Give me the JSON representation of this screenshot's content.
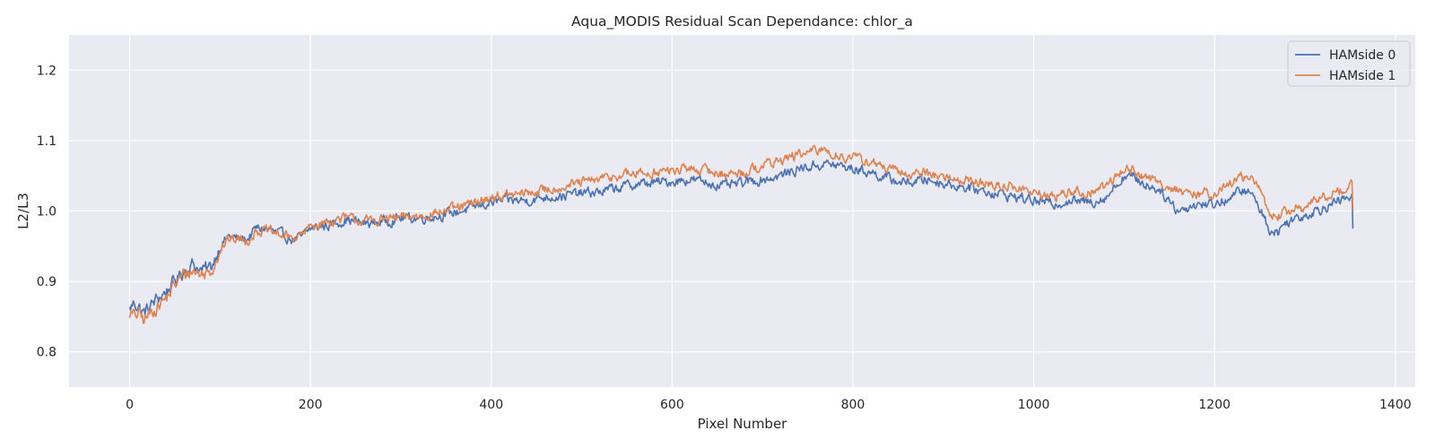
{
  "chart_data": {
    "type": "line",
    "title": "Aqua_MODIS Residual Scan Dependance: chlor_a",
    "xlabel": "Pixel Number",
    "ylabel": "L2/L3",
    "xlim": [
      -67,
      1422
    ],
    "ylim": [
      0.75,
      1.25
    ],
    "xticks": [
      0,
      200,
      400,
      600,
      800,
      1000,
      1200,
      1400
    ],
    "yticks": [
      0.8,
      0.9,
      1.0,
      1.1,
      1.2
    ],
    "xtick_labels": [
      "0",
      "200",
      "400",
      "600",
      "800",
      "1000",
      "1200",
      "1400"
    ],
    "ytick_labels": [
      "0.8",
      "0.9",
      "1.0",
      "1.1",
      "1.2"
    ],
    "grid": true,
    "legend_position": "top-right",
    "series": [
      {
        "name": "HAMside 0",
        "color": "#4c72b0",
        "x": [
          0,
          5,
          10,
          15,
          20,
          30,
          40,
          50,
          60,
          70,
          80,
          90,
          100,
          110,
          120,
          130,
          140,
          150,
          160,
          170,
          180,
          190,
          200,
          220,
          240,
          260,
          280,
          300,
          320,
          340,
          360,
          380,
          400,
          420,
          440,
          460,
          480,
          500,
          520,
          540,
          560,
          580,
          600,
          620,
          640,
          660,
          680,
          700,
          720,
          740,
          760,
          770,
          780,
          800,
          820,
          840,
          860,
          880,
          900,
          920,
          940,
          960,
          980,
          1000,
          1020,
          1040,
          1060,
          1080,
          1090,
          1100,
          1110,
          1120,
          1140,
          1160,
          1170,
          1180,
          1200,
          1220,
          1230,
          1240,
          1250,
          1260,
          1270,
          1280,
          1300,
          1320,
          1340,
          1352,
          1353
        ],
        "y": [
          0.86,
          0.87,
          0.865,
          0.855,
          0.86,
          0.875,
          0.885,
          0.9,
          0.915,
          0.925,
          0.915,
          0.92,
          0.95,
          0.965,
          0.96,
          0.96,
          0.975,
          0.975,
          0.97,
          0.965,
          0.96,
          0.962,
          0.975,
          0.98,
          0.988,
          0.982,
          0.985,
          0.99,
          0.99,
          0.993,
          0.998,
          1.005,
          1.012,
          1.015,
          1.015,
          1.02,
          1.022,
          1.025,
          1.027,
          1.033,
          1.038,
          1.04,
          1.042,
          1.045,
          1.04,
          1.035,
          1.04,
          1.045,
          1.05,
          1.06,
          1.065,
          1.067,
          1.065,
          1.06,
          1.055,
          1.045,
          1.04,
          1.045,
          1.04,
          1.035,
          1.03,
          1.025,
          1.02,
          1.015,
          1.01,
          1.015,
          1.012,
          1.02,
          1.035,
          1.05,
          1.048,
          1.04,
          1.03,
          1.0,
          1.005,
          1.01,
          1.01,
          1.02,
          1.03,
          1.025,
          1.005,
          0.975,
          0.97,
          0.985,
          0.995,
          1.005,
          1.015,
          1.02,
          0.975
        ]
      },
      {
        "name": "HAMside 1",
        "color": "#dd8452",
        "x": [
          0,
          5,
          10,
          15,
          20,
          30,
          40,
          50,
          60,
          70,
          80,
          90,
          100,
          110,
          120,
          130,
          140,
          150,
          160,
          170,
          180,
          190,
          200,
          220,
          240,
          260,
          280,
          300,
          320,
          340,
          360,
          380,
          400,
          420,
          440,
          460,
          480,
          500,
          520,
          540,
          560,
          580,
          600,
          620,
          640,
          660,
          680,
          700,
          720,
          740,
          760,
          770,
          780,
          800,
          820,
          840,
          860,
          880,
          900,
          920,
          940,
          960,
          980,
          1000,
          1020,
          1040,
          1060,
          1080,
          1090,
          1100,
          1110,
          1120,
          1140,
          1160,
          1170,
          1180,
          1200,
          1220,
          1230,
          1240,
          1250,
          1260,
          1270,
          1280,
          1300,
          1320,
          1340,
          1352,
          1353
        ],
        "y": [
          0.855,
          0.85,
          0.855,
          0.845,
          0.85,
          0.865,
          0.875,
          0.895,
          0.91,
          0.915,
          0.91,
          0.915,
          0.945,
          0.96,
          0.96,
          0.958,
          0.972,
          0.972,
          0.968,
          0.965,
          0.962,
          0.965,
          0.978,
          0.985,
          0.99,
          0.985,
          0.988,
          0.99,
          0.993,
          0.998,
          1.003,
          1.01,
          1.02,
          1.022,
          1.025,
          1.03,
          1.035,
          1.04,
          1.045,
          1.05,
          1.053,
          1.055,
          1.057,
          1.06,
          1.057,
          1.052,
          1.055,
          1.065,
          1.072,
          1.08,
          1.085,
          1.087,
          1.08,
          1.075,
          1.07,
          1.058,
          1.052,
          1.055,
          1.048,
          1.045,
          1.04,
          1.035,
          1.035,
          1.025,
          1.02,
          1.028,
          1.025,
          1.035,
          1.048,
          1.06,
          1.058,
          1.05,
          1.04,
          1.03,
          1.02,
          1.025,
          1.025,
          1.04,
          1.05,
          1.045,
          1.03,
          1.0,
          0.99,
          1.0,
          1.005,
          1.02,
          1.03,
          1.035,
          1.0
        ]
      }
    ]
  }
}
